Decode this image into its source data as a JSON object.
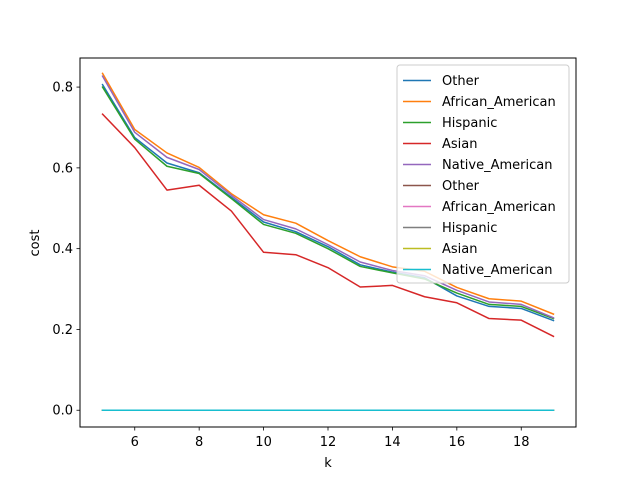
{
  "chart_data": {
    "type": "line",
    "title": "",
    "xlabel": "k",
    "ylabel": "cost",
    "xlim": [
      4.3,
      19.7
    ],
    "ylim": [
      -0.0415,
      0.872
    ],
    "xticks": [
      6,
      8,
      10,
      12,
      14,
      16,
      18
    ],
    "yticks": [
      0.0,
      0.2,
      0.4,
      0.6,
      0.8
    ],
    "xtick_labels": [
      "6",
      "8",
      "10",
      "12",
      "14",
      "16",
      "18"
    ],
    "ytick_labels": [
      "0.0",
      "0.2",
      "0.4",
      "0.6",
      "0.8"
    ],
    "grid": false,
    "legend_position": "top-right",
    "x": [
      5,
      6,
      7,
      8,
      9,
      10,
      11,
      12,
      13,
      14,
      15,
      16,
      17,
      18,
      19
    ],
    "series": [
      {
        "name": "Other",
        "color": "#1f77b4",
        "values": [
          0.806,
          0.675,
          0.612,
          0.588,
          0.527,
          0.466,
          0.442,
          0.405,
          0.36,
          0.342,
          0.328,
          0.283,
          0.257,
          0.252,
          0.222
        ]
      },
      {
        "name": "African_American",
        "color": "#ff7f0e",
        "values": [
          0.834,
          0.695,
          0.637,
          0.601,
          0.536,
          0.484,
          0.463,
          0.42,
          0.38,
          0.355,
          0.344,
          0.304,
          0.276,
          0.27,
          0.238
        ]
      },
      {
        "name": "Hispanic",
        "color": "#2ca02c",
        "values": [
          0.8,
          0.671,
          0.604,
          0.586,
          0.524,
          0.46,
          0.438,
          0.4,
          0.356,
          0.34,
          0.325,
          0.29,
          0.262,
          0.257,
          0.227
        ]
      },
      {
        "name": "Asian",
        "color": "#d62728",
        "values": [
          0.733,
          0.65,
          0.545,
          0.557,
          0.493,
          0.391,
          0.385,
          0.353,
          0.305,
          0.309,
          0.281,
          0.266,
          0.227,
          0.223,
          0.183
        ]
      },
      {
        "name": "Native_American",
        "color": "#9467bd",
        "values": [
          0.827,
          0.688,
          0.626,
          0.596,
          0.532,
          0.472,
          0.449,
          0.41,
          0.367,
          0.346,
          0.333,
          0.297,
          0.268,
          0.262,
          0.229
        ]
      },
      {
        "name": "Other",
        "color": "#8c564b",
        "values": [
          0,
          0,
          0,
          0,
          0,
          0,
          0,
          0,
          0,
          0,
          0,
          0,
          0,
          0,
          0
        ]
      },
      {
        "name": "African_American",
        "color": "#e377c2",
        "values": [
          0,
          0,
          0,
          0,
          0,
          0,
          0,
          0,
          0,
          0,
          0,
          0,
          0,
          0,
          0
        ]
      },
      {
        "name": "Hispanic",
        "color": "#7f7f7f",
        "values": [
          0,
          0,
          0,
          0,
          0,
          0,
          0,
          0,
          0,
          0,
          0,
          0,
          0,
          0,
          0
        ]
      },
      {
        "name": "Asian",
        "color": "#bcbd22",
        "values": [
          0,
          0,
          0,
          0,
          0,
          0,
          0,
          0,
          0,
          0,
          0,
          0,
          0,
          0,
          0
        ]
      },
      {
        "name": "Native_American",
        "color": "#17becf",
        "values": [
          0,
          0,
          0,
          0,
          0,
          0,
          0,
          0,
          0,
          0,
          0,
          0,
          0,
          0,
          0
        ]
      }
    ]
  }
}
